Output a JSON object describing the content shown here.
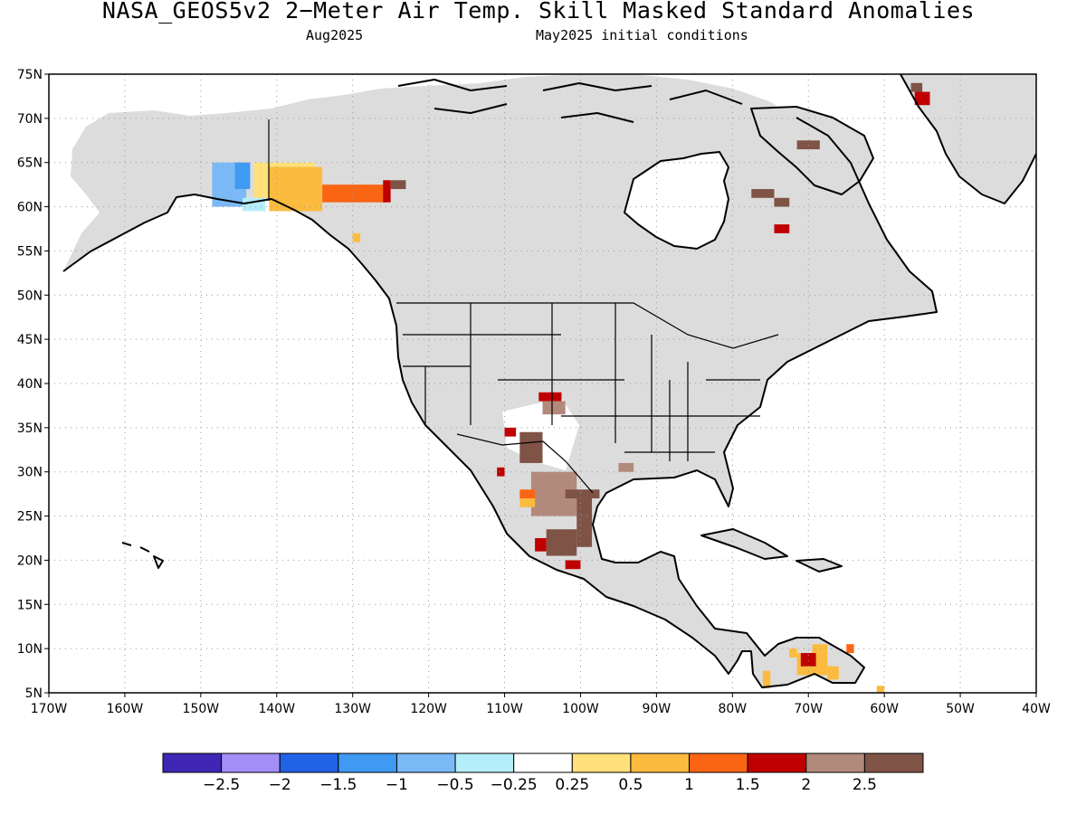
{
  "map": {
    "title": "NASA_GEOS5v2 2−Meter Air Temp. Skill Masked Standard Anomalies",
    "subtitle_left": "Aug2025",
    "subtitle_right": "May2025 initial conditions",
    "lon_range": [
      -170,
      -40
    ],
    "lat_range": [
      5,
      75
    ],
    "gridlines": "dotted",
    "masked_fill_color": "#dcdcdc",
    "coastline_color": "#000000",
    "lat_ticks": [
      "75N",
      "70N",
      "65N",
      "60N",
      "55N",
      "50N",
      "45N",
      "40N",
      "35N",
      "30N",
      "25N",
      "20N",
      "15N",
      "10N",
      "5N"
    ],
    "lon_ticks": [
      "170W",
      "160W",
      "150W",
      "140W",
      "130W",
      "120W",
      "110W",
      "100W",
      "90W",
      "80W",
      "70W",
      "60W",
      "50W",
      "40W"
    ]
  },
  "colorbar": {
    "colors": [
      "#3f26b5",
      "#a28ef6",
      "#2262e6",
      "#3f9af2",
      "#7ab9f6",
      "#b4eefa",
      "#ffffff",
      "#ffe07a",
      "#fbbb3e",
      "#fa6514",
      "#c00000",
      "#b28a7c",
      "#7f5346"
    ],
    "labels": [
      "−2.5",
      "−2",
      "−1.5",
      "−1",
      "−0.5",
      "−0.25",
      "0.25",
      "0.5",
      "1",
      "1.5",
      "2",
      "2.5"
    ]
  },
  "anomaly_patches": [
    {
      "lon": -148.5,
      "lat": 60.0,
      "w": 4.5,
      "h": 5.0,
      "color": "#7ab9f6"
    },
    {
      "lon": -145.5,
      "lat": 62.0,
      "w": 2.0,
      "h": 3.0,
      "color": "#3f9af2"
    },
    {
      "lon": -144.5,
      "lat": 59.5,
      "w": 3.0,
      "h": 1.5,
      "color": "#b4eefa"
    },
    {
      "lon": -143.0,
      "lat": 61.0,
      "w": 8.0,
      "h": 4.0,
      "color": "#ffe07a"
    },
    {
      "lon": -141.0,
      "lat": 59.5,
      "w": 7.0,
      "h": 5.0,
      "color": "#fbbb3e"
    },
    {
      "lon": -134.0,
      "lat": 60.5,
      "w": 8.5,
      "h": 2.0,
      "color": "#fa6514"
    },
    {
      "lon": -126.0,
      "lat": 60.5,
      "w": 1.0,
      "h": 2.5,
      "color": "#c00000"
    },
    {
      "lon": -125.0,
      "lat": 62.0,
      "w": 2.0,
      "h": 1.0,
      "color": "#7f5346"
    },
    {
      "lon": -130.0,
      "lat": 56.0,
      "w": 1.0,
      "h": 1.0,
      "color": "#fbbb3e"
    },
    {
      "lon": -56.0,
      "lat": 71.5,
      "w": 2.0,
      "h": 1.5,
      "color": "#c00000"
    },
    {
      "lon": -56.5,
      "lat": 73.0,
      "w": 1.5,
      "h": 1.0,
      "color": "#7f5346"
    },
    {
      "lon": -71.5,
      "lat": 66.5,
      "w": 3.0,
      "h": 1.0,
      "color": "#7f5346"
    },
    {
      "lon": -77.5,
      "lat": 61.0,
      "w": 3.0,
      "h": 1.0,
      "color": "#7f5346"
    },
    {
      "lon": -74.5,
      "lat": 60.0,
      "w": 2.0,
      "h": 1.0,
      "color": "#7f5346"
    },
    {
      "lon": -74.5,
      "lat": 57.0,
      "w": 2.0,
      "h": 1.0,
      "color": "#c00000"
    },
    {
      "lon": -105.5,
      "lat": 38.0,
      "w": 3.0,
      "h": 1.0,
      "color": "#c00000"
    },
    {
      "lon": -105.0,
      "lat": 36.5,
      "w": 3.0,
      "h": 1.5,
      "color": "#b28a7c"
    },
    {
      "lon": -108.0,
      "lat": 31.0,
      "w": 3.0,
      "h": 3.5,
      "color": "#7f5346"
    },
    {
      "lon": -110.0,
      "lat": 34.0,
      "w": 1.5,
      "h": 1.0,
      "color": "#c00000"
    },
    {
      "lon": -111.0,
      "lat": 29.5,
      "w": 1.0,
      "h": 1.0,
      "color": "#c00000"
    },
    {
      "lon": -106.5,
      "lat": 25.0,
      "w": 6.0,
      "h": 5.0,
      "color": "#b28a7c"
    },
    {
      "lon": -102.0,
      "lat": 27.0,
      "w": 4.5,
      "h": 1.0,
      "color": "#7f5346"
    },
    {
      "lon": -108.0,
      "lat": 27.0,
      "w": 2.0,
      "h": 1.0,
      "color": "#fa6514"
    },
    {
      "lon": -108.0,
      "lat": 26.0,
      "w": 2.0,
      "h": 1.0,
      "color": "#fbbb3e"
    },
    {
      "lon": -100.5,
      "lat": 21.5,
      "w": 2.0,
      "h": 6.0,
      "color": "#7f5346"
    },
    {
      "lon": -104.5,
      "lat": 20.5,
      "w": 4.0,
      "h": 3.0,
      "color": "#7f5346"
    },
    {
      "lon": -106.0,
      "lat": 21.0,
      "w": 1.5,
      "h": 1.5,
      "color": "#c00000"
    },
    {
      "lon": -102.0,
      "lat": 19.0,
      "w": 2.0,
      "h": 1.0,
      "color": "#c00000"
    },
    {
      "lon": -95.0,
      "lat": 30.0,
      "w": 2.0,
      "h": 1.0,
      "color": "#b28a7c"
    },
    {
      "lon": -71.5,
      "lat": 7.0,
      "w": 4.0,
      "h": 2.5,
      "color": "#fbbb3e"
    },
    {
      "lon": -71.0,
      "lat": 8.0,
      "w": 2.0,
      "h": 1.5,
      "color": "#c00000"
    },
    {
      "lon": -67.5,
      "lat": 6.5,
      "w": 1.5,
      "h": 1.5,
      "color": "#fbbb3e"
    },
    {
      "lon": -76.0,
      "lat": 5.5,
      "w": 1.0,
      "h": 2.0,
      "color": "#fbbb3e"
    },
    {
      "lon": -72.5,
      "lat": 9.0,
      "w": 1.0,
      "h": 1.0,
      "color": "#fbbb3e"
    },
    {
      "lon": -69.5,
      "lat": 9.5,
      "w": 2.0,
      "h": 1.0,
      "color": "#fbbb3e"
    },
    {
      "lon": -65.0,
      "lat": 9.5,
      "w": 1.0,
      "h": 1.0,
      "color": "#fa6514"
    },
    {
      "lon": -61.0,
      "lat": 5.0,
      "w": 1.0,
      "h": 0.8,
      "color": "#fbbb3e"
    }
  ]
}
